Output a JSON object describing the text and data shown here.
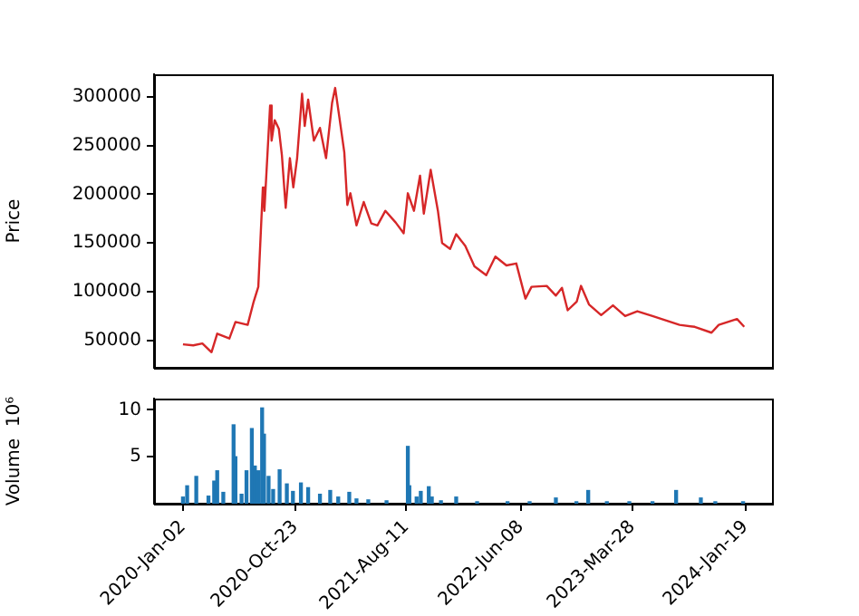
{
  "chart_data": [
    {
      "type": "line",
      "ylabel": "Price",
      "tick_labels": "y",
      "x": [
        "2020-01-02",
        "2020-01-29",
        "2020-02-22",
        "2020-03-17",
        "2020-04-01",
        "2020-05-03",
        "2020-05-19",
        "2020-06-20",
        "2020-07-06",
        "2020-07-18",
        "2020-07-30",
        "2020-08-03",
        "2020-08-18",
        "2020-08-22",
        "2020-08-30",
        "2020-09-10",
        "2020-09-18",
        "2020-09-28",
        "2020-10-09",
        "2020-10-18",
        "2020-10-28",
        "2020-11-10",
        "2020-11-17",
        "2020-11-26",
        "2020-12-11",
        "2020-12-27",
        "2021-01-12",
        "2021-01-28",
        "2021-02-05",
        "2021-02-16",
        "2021-03-01",
        "2021-03-09",
        "2021-03-17",
        "2021-04-02",
        "2021-04-21",
        "2021-05-11",
        "2021-05-27",
        "2021-06-17",
        "2021-07-14",
        "2021-08-04",
        "2021-08-15",
        "2021-08-31",
        "2021-09-16",
        "2021-09-26",
        "2021-10-14",
        "2021-11-02",
        "2021-11-13",
        "2021-12-04",
        "2021-12-20",
        "2022-01-13",
        "2022-02-06",
        "2022-03-09",
        "2022-04-02",
        "2022-05-01",
        "2022-05-27",
        "2022-06-20",
        "2022-07-06",
        "2022-08-15",
        "2022-09-08",
        "2022-09-24",
        "2022-10-09",
        "2022-11-02",
        "2022-11-13",
        "2022-12-04",
        "2023-01-05",
        "2023-02-05",
        "2023-03-09",
        "2023-04-10",
        "2023-05-20",
        "2023-06-29",
        "2023-07-30",
        "2023-09-08",
        "2023-10-22",
        "2023-11-10",
        "2023-12-28",
        "2024-01-16"
      ],
      "series": [
        {
          "color": "#d62728",
          "values": [
            46000,
            45000,
            47000,
            38000,
            57000,
            52000,
            69000,
            66000,
            90000,
            105000,
            207000,
            183000,
            291000,
            255000,
            276000,
            267000,
            240000,
            186000,
            237000,
            207000,
            237000,
            303000,
            270000,
            297000,
            255000,
            268000,
            237000,
            294000,
            309000,
            279000,
            243000,
            189000,
            201000,
            168000,
            192000,
            170000,
            168000,
            183000,
            171000,
            160000,
            201000,
            183000,
            219000,
            180000,
            225000,
            183000,
            150000,
            144000,
            159000,
            147000,
            126000,
            117000,
            136000,
            127000,
            129000,
            93000,
            105000,
            106000,
            96000,
            104000,
            81000,
            90000,
            106000,
            87000,
            76000,
            86000,
            75000,
            80000,
            75000,
            70000,
            66000,
            64000,
            58000,
            66000,
            72000,
            64000
          ]
        }
      ],
      "xlim": [
        "2019-10-18",
        "2024-03-29"
      ],
      "xticks": [
        {
          "value": "2020-01-02",
          "label": null
        },
        {
          "value": "2020-10-23",
          "label": null
        },
        {
          "value": "2021-08-11",
          "label": null
        },
        {
          "value": "2022-06-08",
          "label": null
        },
        {
          "value": "2023-03-28",
          "label": null
        },
        {
          "value": "2024-01-19",
          "label": null
        }
      ],
      "ylim": [
        22000,
        323000
      ],
      "yticks": [
        50000,
        100000,
        150000,
        200000,
        250000,
        300000
      ]
    },
    {
      "type": "bar",
      "ylabel": "Volume  10⁶",
      "x": [
        "2020-01-02",
        "2020-01-13",
        "2020-02-06",
        "2020-03-09",
        "2020-03-24",
        "2020-04-01",
        "2020-04-17",
        "2020-05-14",
        "2020-05-19",
        "2020-06-04",
        "2020-06-17",
        "2020-07-01",
        "2020-07-09",
        "2020-07-18",
        "2020-07-28",
        "2020-08-02",
        "2020-08-14",
        "2020-08-26",
        "2020-09-12",
        "2020-10-01",
        "2020-10-17",
        "2020-11-07",
        "2020-11-26",
        "2020-12-27",
        "2021-01-23",
        "2021-02-13",
        "2021-03-14",
        "2021-04-02",
        "2021-05-03",
        "2021-06-20",
        "2021-08-15",
        "2021-08-19",
        "2021-09-07",
        "2021-09-18",
        "2021-10-09",
        "2021-10-17",
        "2021-11-10",
        "2021-12-20",
        "2022-02-13",
        "2022-05-04",
        "2022-07-01",
        "2022-09-08",
        "2022-11-01",
        "2022-12-02",
        "2023-01-20",
        "2023-03-20",
        "2023-05-20",
        "2023-07-21",
        "2023-09-24",
        "2023-11-01",
        "2024-01-13"
      ],
      "values": [
        0.7,
        1.9,
        2.9,
        0.8,
        2.4,
        3.5,
        1.2,
        8.4,
        5.0,
        1.0,
        3.5,
        8.0,
        4.0,
        3.5,
        10.2,
        7.4,
        2.9,
        1.5,
        3.6,
        2.1,
        1.3,
        2.2,
        1.7,
        1.0,
        1.4,
        0.7,
        1.2,
        0.5,
        0.4,
        0.3,
        6.1,
        1.9,
        0.7,
        1.3,
        1.8,
        0.7,
        0.3,
        0.7,
        0.2,
        0.2,
        0.2,
        0.6,
        0.2,
        1.4,
        0.2,
        0.2,
        0.2,
        1.4,
        0.6,
        0.2,
        0.2
      ],
      "color": "#1f77b4",
      "xlim": [
        "2019-10-18",
        "2024-03-29"
      ],
      "xticks": [
        {
          "value": "2020-01-02",
          "label": "2020-Jan-02"
        },
        {
          "value": "2020-10-23",
          "label": "2020-Oct-23"
        },
        {
          "value": "2021-08-11",
          "label": "2021-Aug-11"
        },
        {
          "value": "2022-06-08",
          "label": "2022-Jun-08"
        },
        {
          "value": "2023-03-28",
          "label": "2023-Mar-28"
        },
        {
          "value": "2024-01-19",
          "label": "2024-Jan-19"
        }
      ],
      "ylim": [
        0,
        11.2
      ],
      "yticks": [
        5,
        10
      ]
    }
  ]
}
